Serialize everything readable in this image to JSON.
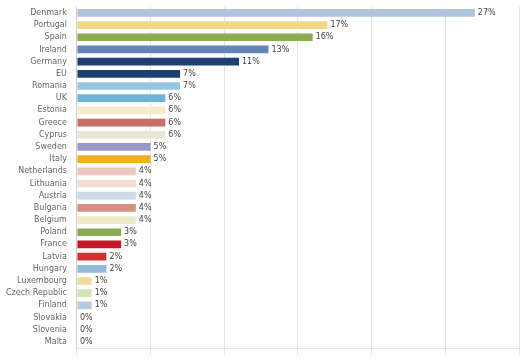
{
  "chart_data": {
    "type": "bar",
    "orientation": "horizontal",
    "categories": [
      "Denmark",
      "Portugal",
      "Spain",
      "Ireland",
      "Germany",
      "EU",
      "Romania",
      "UK",
      "Estonia",
      "Greece",
      "Cyprus",
      "Sweden",
      "Italy",
      "Netherlands",
      "Lithuania",
      "Austria",
      "Bulgaria",
      "Belgium",
      "Poland",
      "France",
      "Latvia",
      "Hungary",
      "Luxembourg",
      "Czech Republic",
      "Finland",
      "Slovakia",
      "Slovenia",
      "Malta"
    ],
    "values": [
      27,
      17,
      16,
      13,
      11,
      7,
      7,
      6,
      6,
      6,
      6,
      5,
      5,
      4,
      4,
      4,
      4,
      4,
      3,
      3,
      2,
      2,
      1,
      1,
      1,
      0,
      0,
      0
    ],
    "value_labels": [
      "27%",
      "17%",
      "16%",
      "13%",
      "11%",
      "7%",
      "7%",
      "6%",
      "6%",
      "6%",
      "6%",
      "5%",
      "5%",
      "4%",
      "4%",
      "4%",
      "4%",
      "4%",
      "3%",
      "3%",
      "2%",
      "2%",
      "1%",
      "1%",
      "1%",
      "0%",
      "0%",
      "0%"
    ],
    "colors": [
      "#adc4da",
      "#f2d98a",
      "#8dab50",
      "#6485bc",
      "#1e3f72",
      "#1e3f72",
      "#96c6e0",
      "#70b2d8",
      "#f5ecd0",
      "#c47068",
      "#ece4d4",
      "#9898c4",
      "#f5ae20",
      "#ecc8c0",
      "#f5ddd4",
      "#ccdaec",
      "#d89080",
      "#eeecc8",
      "#8aaa50",
      "#c01828",
      "#d43030",
      "#90b8d8",
      "#f0dc98",
      "#d4e4b4",
      "#b4ccdc",
      "#cccccc",
      "#cccccc",
      "#cccccc"
    ],
    "xlim": [
      0,
      30
    ],
    "xticks": [
      0,
      5,
      10,
      15,
      20,
      25,
      30
    ],
    "grid": true,
    "tick_labels": "y",
    "data_labels": true
  }
}
